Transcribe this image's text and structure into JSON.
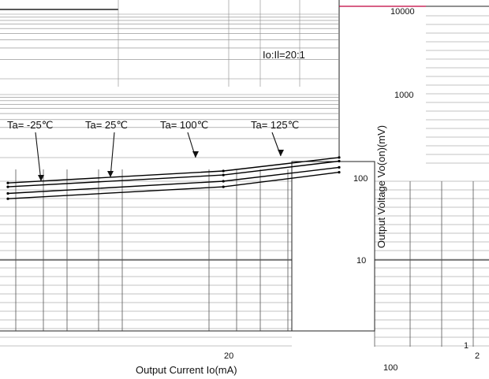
{
  "chart_data": {
    "type": "line",
    "title": "",
    "annotation": "Io:Il=20:1",
    "xlabel": "Output Current   Io(mA)",
    "ylabel": "Output Voltage   Vo(on)(mV)",
    "x_scale": "log",
    "y_scale": "log",
    "y_tick_labels": [
      "10000",
      "1000",
      "100",
      "10",
      "1"
    ],
    "x_tick_labels": [
      "1",
      "20",
      "100",
      "2"
    ],
    "grid": true,
    "series": [
      {
        "name": "Ta= -25℃",
        "x": [
          1,
          20,
          100
        ],
        "y": [
          60,
          85,
          130
        ]
      },
      {
        "name": "Ta= 25℃",
        "x": [
          1,
          20,
          100
        ],
        "y": [
          70,
          100,
          150
        ]
      },
      {
        "name": "Ta= 100℃",
        "x": [
          1,
          20,
          100
        ],
        "y": [
          85,
          120,
          180
        ]
      },
      {
        "name": "Ta= 125℃",
        "x": [
          1,
          20,
          100
        ],
        "y": [
          95,
          135,
          200
        ]
      }
    ]
  },
  "colors": {
    "grid": "#888888",
    "line": "#000000",
    "accent": "#c0003c"
  }
}
